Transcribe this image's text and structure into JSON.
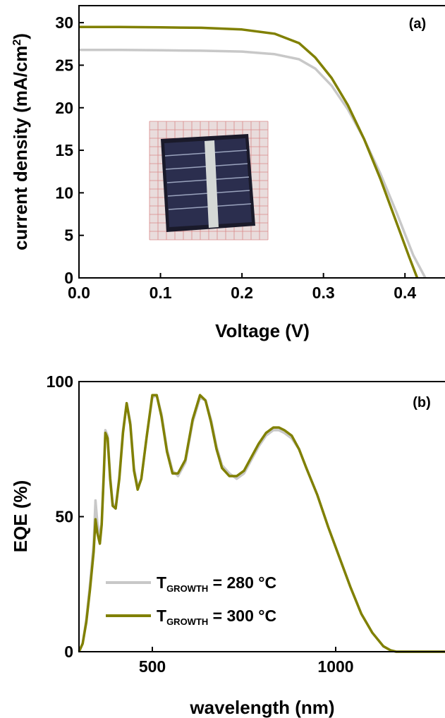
{
  "chart_data": [
    {
      "panel_label": "(a)",
      "type": "line",
      "xlabel": "Voltage (V)",
      "ylabel": "current density (mA/cm",
      "ylabel_sup": "2",
      "ylabel_close": ")",
      "xlim": [
        0.0,
        0.45
      ],
      "ylim": [
        0,
        32
      ],
      "xticks": [
        0.0,
        0.1,
        0.2,
        0.3,
        0.4
      ],
      "xtick_labels": [
        "0.0",
        "0.1",
        "0.2",
        "0.3",
        "0.4"
      ],
      "yticks": [
        0,
        5,
        10,
        15,
        20,
        25,
        30
      ],
      "ytick_labels": [
        "0",
        "5",
        "10",
        "15",
        "20",
        "25",
        "30"
      ],
      "inset": "photo of solar cell on grid paper",
      "series": [
        {
          "color": "#c8c8c8",
          "x": [
            0.0,
            0.05,
            0.1,
            0.15,
            0.2,
            0.24,
            0.27,
            0.29,
            0.31,
            0.33,
            0.35,
            0.37,
            0.39,
            0.41,
            0.425
          ],
          "y": [
            26.8,
            26.8,
            26.75,
            26.7,
            26.6,
            26.3,
            25.7,
            24.6,
            22.6,
            19.8,
            16.3,
            12.2,
            7.6,
            2.7,
            0
          ]
        },
        {
          "color": "#808000",
          "x": [
            0.0,
            0.05,
            0.1,
            0.15,
            0.2,
            0.24,
            0.27,
            0.29,
            0.31,
            0.33,
            0.35,
            0.37,
            0.39,
            0.405,
            0.415
          ],
          "y": [
            29.5,
            29.5,
            29.45,
            29.4,
            29.2,
            28.7,
            27.6,
            25.9,
            23.5,
            20.3,
            16.3,
            11.6,
            6.4,
            2.5,
            0
          ]
        }
      ]
    },
    {
      "panel_label": "(b)",
      "type": "line",
      "xlabel": "wavelength (nm)",
      "ylabel": "EQE (%)",
      "xlim": [
        300,
        1300
      ],
      "ylim": [
        0,
        100
      ],
      "xticks": [
        500,
        1000
      ],
      "xtick_labels": [
        "500",
        "1000"
      ],
      "yticks": [
        0,
        50,
        100
      ],
      "ytick_labels": [
        "0",
        "50",
        "100"
      ],
      "legend_position": "bottom-left",
      "series": [
        {
          "name_main": "T",
          "name_sub": "GROWTH",
          "name_rest": " = 280 °C",
          "color": "#c8c8c8",
          "x": [
            300,
            310,
            320,
            330,
            340,
            345,
            350,
            357,
            362,
            368,
            372,
            378,
            385,
            392,
            400,
            410,
            420,
            430,
            440,
            450,
            460,
            470,
            485,
            500,
            512,
            525,
            540,
            555,
            570,
            590,
            610,
            630,
            645,
            660,
            675,
            690,
            710,
            730,
            750,
            770,
            790,
            810,
            830,
            845,
            860,
            880,
            900,
            920,
            950,
            980,
            1010,
            1040,
            1070,
            1100,
            1130,
            1150,
            1165,
            1180,
            1200,
            1250,
            1300
          ],
          "y": [
            0,
            3,
            12,
            25,
            40,
            56,
            48,
            42,
            48,
            68,
            82,
            80,
            65,
            55,
            53,
            65,
            82,
            92,
            85,
            68,
            61,
            64,
            80,
            94,
            95,
            88,
            75,
            67,
            65,
            70,
            85,
            94,
            93,
            86,
            76,
            69,
            66,
            64,
            66,
            71,
            76,
            80,
            82,
            82,
            81,
            79,
            75,
            68,
            58,
            46,
            35,
            24,
            14,
            7,
            2,
            0.5,
            0,
            0,
            0,
            0,
            0
          ]
        },
        {
          "name_main": "T",
          "name_sub": "GROWTH",
          "name_rest": " = 300 °C",
          "color": "#808000",
          "x": [
            300,
            310,
            320,
            330,
            340,
            345,
            350,
            357,
            362,
            368,
            372,
            378,
            385,
            392,
            400,
            410,
            420,
            430,
            440,
            450,
            460,
            470,
            485,
            500,
            512,
            525,
            540,
            555,
            570,
            590,
            610,
            630,
            645,
            660,
            675,
            690,
            710,
            730,
            750,
            770,
            790,
            810,
            830,
            845,
            860,
            880,
            900,
            920,
            950,
            980,
            1010,
            1040,
            1070,
            1100,
            1130,
            1150,
            1165,
            1180,
            1200,
            1250,
            1300
          ],
          "y": [
            0,
            3,
            11,
            23,
            37,
            49,
            44,
            40,
            47,
            67,
            81,
            79,
            64,
            54,
            53,
            64,
            81,
            92,
            84,
            67,
            60,
            64,
            80,
            95,
            95,
            87,
            74,
            66,
            66,
            71,
            86,
            95,
            93,
            85,
            75,
            68,
            65,
            65,
            67,
            72,
            77,
            81,
            83,
            83,
            82,
            80,
            75,
            68,
            58,
            46,
            35,
            24,
            14,
            7,
            2,
            0.5,
            0,
            0,
            0,
            0,
            0
          ]
        }
      ]
    }
  ]
}
